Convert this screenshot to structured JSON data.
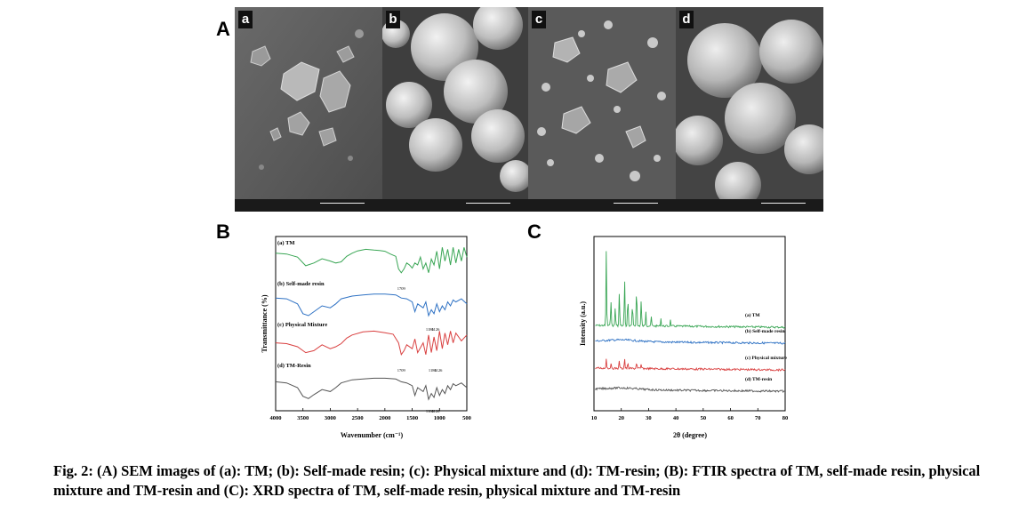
{
  "figure": {
    "panel_A_label": "A",
    "panel_B_label": "B",
    "panel_C_label": "C",
    "sem_panels": [
      {
        "label": "a",
        "sample": "TM"
      },
      {
        "label": "b",
        "sample": "Self-made resin"
      },
      {
        "label": "c",
        "sample": "Physical mixture"
      },
      {
        "label": "d",
        "sample": "TM-resin"
      }
    ],
    "caption": "Fig. 2: (A) SEM images of (a): TM; (b): Self-made resin; (c): Physical mixture and (d): TM-resin; (B): FTIR spectra of TM, self-made resin, physical mixture and TM-resin and (C): XRD spectra of TM, self-made resin, physical mixture and TM-resin"
  },
  "chart_data": [
    {
      "type": "line",
      "name": "FTIR",
      "xlabel": "Wavenumber (cm⁻¹)",
      "ylabel": "Transmittance (%)",
      "xlim": [
        4000,
        500
      ],
      "x_ticks": [
        "4000",
        "3500",
        "3000",
        "2500",
        "2000",
        "1500",
        "1000",
        "500"
      ],
      "grid": false,
      "series": [
        {
          "name": "(a) TM",
          "color": "#3aa655",
          "x": [
            4000,
            3800,
            3600,
            3450,
            3300,
            3150,
            3000,
            2900,
            2800,
            2700,
            2600,
            2500,
            2350,
            2200,
            2100,
            2000,
            1900,
            1800,
            1750,
            1700,
            1650,
            1600,
            1550,
            1500,
            1450,
            1400,
            1350,
            1300,
            1250,
            1200,
            1150,
            1100,
            1050,
            1000,
            950,
            900,
            850,
            800,
            750,
            700,
            650,
            600,
            550,
            500
          ],
          "y": [
            0.8,
            0.78,
            0.7,
            0.48,
            0.55,
            0.66,
            0.6,
            0.55,
            0.58,
            0.72,
            0.8,
            0.86,
            0.9,
            0.88,
            0.87,
            0.85,
            0.78,
            0.72,
            0.4,
            0.3,
            0.4,
            0.55,
            0.5,
            0.42,
            0.55,
            0.5,
            0.7,
            0.4,
            0.55,
            0.3,
            0.65,
            0.5,
            0.85,
            0.4,
            0.95,
            0.6,
            0.9,
            0.5,
            0.95,
            0.55,
            0.9,
            0.6,
            0.95,
            0.7
          ],
          "annotations": [
            "1709"
          ]
        },
        {
          "name": "(b) Self-made resin",
          "color": "#2f72c4",
          "x": [
            4000,
            3800,
            3600,
            3500,
            3400,
            3300,
            3150,
            3000,
            2900,
            2800,
            2600,
            2400,
            2200,
            2000,
            1800,
            1700,
            1600,
            1500,
            1450,
            1400,
            1300,
            1250,
            1200,
            1150,
            1100,
            1050,
            1000,
            950,
            900,
            850,
            800,
            750,
            700,
            600,
            500
          ],
          "y": [
            0.7,
            0.68,
            0.55,
            0.3,
            0.25,
            0.35,
            0.5,
            0.45,
            0.55,
            0.68,
            0.75,
            0.78,
            0.8,
            0.8,
            0.78,
            0.7,
            0.68,
            0.6,
            0.35,
            0.55,
            0.45,
            0.6,
            0.25,
            0.4,
            0.3,
            0.55,
            0.35,
            0.5,
            0.4,
            0.6,
            0.5,
            0.65,
            0.6,
            0.68,
            0.55
          ],
          "annotations": [
            "1186",
            "1126"
          ]
        },
        {
          "name": "(c) Physical Mixture",
          "color": "#d94040",
          "x": [
            4000,
            3800,
            3600,
            3450,
            3300,
            3150,
            3000,
            2900,
            2800,
            2700,
            2600,
            2400,
            2200,
            2000,
            1850,
            1750,
            1700,
            1650,
            1600,
            1500,
            1450,
            1400,
            1300,
            1250,
            1200,
            1150,
            1100,
            1050,
            1000,
            950,
            900,
            850,
            800,
            750,
            700,
            600,
            500
          ],
          "y": [
            0.6,
            0.58,
            0.5,
            0.35,
            0.4,
            0.55,
            0.45,
            0.5,
            0.58,
            0.72,
            0.8,
            0.88,
            0.9,
            0.86,
            0.82,
            0.6,
            0.3,
            0.4,
            0.55,
            0.45,
            0.7,
            0.35,
            0.6,
            0.3,
            0.8,
            0.35,
            0.75,
            0.4,
            0.9,
            0.45,
            0.85,
            0.55,
            0.9,
            0.6,
            0.85,
            0.65,
            0.8
          ],
          "annotations": [
            "1709",
            "1186",
            "1126"
          ]
        },
        {
          "name": "(d) TM-Resin",
          "color": "#555555",
          "x": [
            4000,
            3800,
            3600,
            3500,
            3400,
            3300,
            3150,
            3000,
            2900,
            2800,
            2600,
            2400,
            2200,
            2000,
            1800,
            1700,
            1600,
            1500,
            1450,
            1400,
            1300,
            1250,
            1200,
            1150,
            1100,
            1050,
            1000,
            950,
            900,
            850,
            800,
            750,
            700,
            600,
            500
          ],
          "y": [
            0.65,
            0.62,
            0.5,
            0.28,
            0.22,
            0.32,
            0.45,
            0.4,
            0.5,
            0.62,
            0.7,
            0.72,
            0.74,
            0.74,
            0.72,
            0.65,
            0.62,
            0.55,
            0.3,
            0.5,
            0.4,
            0.55,
            0.2,
            0.35,
            0.25,
            0.5,
            0.3,
            0.45,
            0.35,
            0.55,
            0.45,
            0.6,
            0.55,
            0.62,
            0.5
          ],
          "annotations": [
            "1186",
            "1126"
          ]
        }
      ]
    },
    {
      "type": "line",
      "name": "XRD",
      "xlabel": "2θ (degree)",
      "ylabel": "Intensity (a.u.)",
      "xlim": [
        10,
        80
      ],
      "x_ticks": [
        "10",
        "20",
        "30",
        "40",
        "50",
        "60",
        "70",
        "80"
      ],
      "grid": false,
      "series": [
        {
          "name": "(a) TM",
          "color": "#3aa655",
          "peaks": [
            [
              14.5,
              1.0
            ],
            [
              16.2,
              0.35
            ],
            [
              17.8,
              0.25
            ],
            [
              19.3,
              0.45
            ],
            [
              21.2,
              0.65
            ],
            [
              22.4,
              0.4
            ],
            [
              24.1,
              0.3
            ],
            [
              25.6,
              0.55
            ],
            [
              27.3,
              0.35
            ],
            [
              29.0,
              0.2
            ],
            [
              31.0,
              0.12
            ],
            [
              34.5,
              0.1
            ],
            [
              38.0,
              0.08
            ]
          ],
          "baseline": 0.0
        },
        {
          "name": "(b) Self-made resin",
          "color": "#2f72c4",
          "peaks": [],
          "baseline": 0.0
        },
        {
          "name": "(c) Physical mixture",
          "color": "#d94040",
          "peaks": [
            [
              14.5,
              0.3
            ],
            [
              16.2,
              0.12
            ],
            [
              19.3,
              0.22
            ],
            [
              21.2,
              0.3
            ],
            [
              22.4,
              0.15
            ],
            [
              25.6,
              0.2
            ],
            [
              27.3,
              0.12
            ]
          ],
          "baseline": 0.0
        },
        {
          "name": "(d) TM-resin",
          "color": "#555555",
          "peaks": [],
          "baseline": 0.0
        }
      ]
    }
  ]
}
